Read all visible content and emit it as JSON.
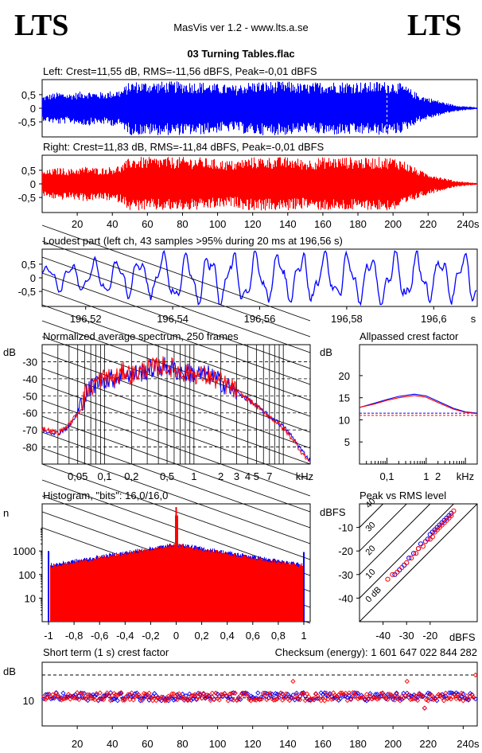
{
  "header": {
    "logo_left": "LTS",
    "logo_right": "LTS",
    "app": "MasVis ver 1.2 - www.lts.a.se",
    "file": "03 Turning Tables.flac"
  },
  "colors": {
    "left": "#0000ff",
    "right": "#ff0000",
    "axis": "#000000"
  },
  "chart_data": [
    {
      "type": "area",
      "name": "left-waveform",
      "title": "Left: Crest=11,55 dB, RMS=-11,56 dBFS, Peak=-0,01 dBFS",
      "yticks": [
        "0,5",
        "0",
        "-0,5"
      ],
      "ylim": [
        -1,
        1
      ],
      "xlim": [
        0,
        248
      ],
      "envelope": [
        [
          0,
          0.45
        ],
        [
          5,
          0.55
        ],
        [
          10,
          0.6
        ],
        [
          15,
          0.55
        ],
        [
          20,
          0.6
        ],
        [
          25,
          0.65
        ],
        [
          30,
          0.6
        ],
        [
          35,
          0.6
        ],
        [
          40,
          0.65
        ],
        [
          45,
          0.7
        ],
        [
          50,
          0.99
        ],
        [
          60,
          0.99
        ],
        [
          70,
          0.99
        ],
        [
          80,
          0.99
        ],
        [
          90,
          0.98
        ],
        [
          100,
          0.9
        ],
        [
          110,
          0.85
        ],
        [
          115,
          0.95
        ],
        [
          120,
          0.99
        ],
        [
          130,
          0.99
        ],
        [
          140,
          0.99
        ],
        [
          145,
          0.95
        ],
        [
          150,
          0.9
        ],
        [
          155,
          0.95
        ],
        [
          160,
          0.99
        ],
        [
          170,
          0.99
        ],
        [
          180,
          0.99
        ],
        [
          185,
          0.95
        ],
        [
          190,
          0.99
        ],
        [
          200,
          0.99
        ],
        [
          205,
          0.9
        ],
        [
          210,
          0.7
        ],
        [
          215,
          0.5
        ],
        [
          220,
          0.4
        ],
        [
          225,
          0.3
        ],
        [
          230,
          0.2
        ],
        [
          235,
          0.12
        ],
        [
          240,
          0.08
        ],
        [
          245,
          0.05
        ],
        [
          248,
          0.03
        ]
      ]
    },
    {
      "type": "area",
      "name": "right-waveform",
      "title": "Right: Crest=11,83 dB, RMS=-11,84 dBFS, Peak=-0,01 dBFS",
      "yticks": [
        "0,5",
        "0",
        "-0,5"
      ],
      "ylim": [
        -1,
        1
      ],
      "xlim": [
        0,
        248
      ],
      "xticks": [
        "20",
        "40",
        "60",
        "80",
        "100",
        "120",
        "140",
        "160",
        "180",
        "200",
        "220",
        "240s"
      ],
      "xtick_values": [
        20,
        40,
        60,
        80,
        100,
        120,
        140,
        160,
        180,
        200,
        220,
        240
      ],
      "envelope": [
        [
          0,
          0.45
        ],
        [
          5,
          0.55
        ],
        [
          10,
          0.6
        ],
        [
          15,
          0.55
        ],
        [
          20,
          0.6
        ],
        [
          25,
          0.65
        ],
        [
          30,
          0.6
        ],
        [
          35,
          0.6
        ],
        [
          40,
          0.65
        ],
        [
          45,
          0.7
        ],
        [
          50,
          0.99
        ],
        [
          60,
          0.99
        ],
        [
          70,
          0.99
        ],
        [
          80,
          0.99
        ],
        [
          90,
          0.98
        ],
        [
          100,
          0.9
        ],
        [
          110,
          0.85
        ],
        [
          115,
          0.95
        ],
        [
          120,
          0.99
        ],
        [
          130,
          0.99
        ],
        [
          140,
          0.99
        ],
        [
          145,
          0.95
        ],
        [
          150,
          0.9
        ],
        [
          155,
          0.95
        ],
        [
          160,
          0.99
        ],
        [
          170,
          0.99
        ],
        [
          180,
          0.99
        ],
        [
          185,
          0.95
        ],
        [
          190,
          0.99
        ],
        [
          200,
          0.99
        ],
        [
          205,
          0.9
        ],
        [
          210,
          0.7
        ],
        [
          215,
          0.5
        ],
        [
          220,
          0.4
        ],
        [
          225,
          0.3
        ],
        [
          230,
          0.2
        ],
        [
          235,
          0.12
        ],
        [
          240,
          0.08
        ],
        [
          245,
          0.05
        ],
        [
          248,
          0.03
        ]
      ]
    },
    {
      "type": "line",
      "name": "loudest-part",
      "title": "Loudest part (left  ch, 43 samples >95% during 20 ms at 196,56 s)",
      "yticks": [
        "0,5",
        "0",
        "-0,5"
      ],
      "ylim": [
        -1,
        1
      ],
      "xlim": [
        196.51,
        196.61
      ],
      "xticks": [
        "196,52",
        "196,54",
        "196,56",
        "196,58",
        "196,6",
        "s"
      ],
      "xtick_values": [
        196.52,
        196.54,
        196.56,
        196.58,
        196.6
      ]
    },
    {
      "type": "line",
      "name": "average-spectrum",
      "title": "Normalized average spectrum, 250 frames",
      "ylabel": "dB",
      "yticks": [
        "-30",
        "-40",
        "-50",
        "-60",
        "-70",
        "-80"
      ],
      "ytick_values": [
        -30,
        -40,
        -50,
        -60,
        -70,
        -80
      ],
      "ylim": [
        -90,
        -20
      ],
      "xscale": "log",
      "xlim": [
        0.02,
        20
      ],
      "xticks": [
        "0,05",
        "0,1",
        "0,2",
        "0,5",
        "1",
        "2",
        "3",
        "4",
        "5",
        "7",
        "kHz"
      ],
      "xtick_values": [
        0.05,
        0.1,
        0.2,
        0.5,
        1,
        2,
        3,
        4,
        5,
        7
      ],
      "series": [
        {
          "color": "#0000ff",
          "x": [
            0.02,
            0.03,
            0.04,
            0.05,
            0.06,
            0.08,
            0.1,
            0.13,
            0.17,
            0.2,
            0.3,
            0.4,
            0.5,
            0.7,
            1,
            1.5,
            2,
            3,
            4,
            5,
            7,
            10,
            13,
            16,
            20
          ],
          "y": [
            -70,
            -72,
            -68,
            -60,
            -50,
            -42,
            -40,
            -40,
            -36,
            -38,
            -35,
            -33,
            -33,
            -36,
            -37,
            -38,
            -42,
            -48,
            -52,
            -56,
            -62,
            -68,
            -75,
            -82,
            -88
          ]
        },
        {
          "color": "#ff0000",
          "x": [
            0.02,
            0.03,
            0.04,
            0.05,
            0.06,
            0.08,
            0.1,
            0.13,
            0.17,
            0.2,
            0.3,
            0.4,
            0.5,
            0.7,
            1,
            1.5,
            2,
            3,
            4,
            5,
            7,
            10,
            13,
            16,
            20
          ],
          "y": [
            -69,
            -72,
            -67,
            -60,
            -49,
            -42,
            -39,
            -40,
            -35,
            -38,
            -34,
            -33,
            -32,
            -36,
            -37,
            -39,
            -42,
            -47,
            -52,
            -56,
            -62,
            -69,
            -76,
            -83,
            -89
          ]
        }
      ]
    },
    {
      "type": "line",
      "name": "allpassed-crest-factor",
      "title": "Allpassed crest factor",
      "ylabel": "dB",
      "yticks": [
        "20",
        "15",
        "10",
        "5"
      ],
      "ytick_values": [
        20,
        15,
        10,
        5
      ],
      "ylim": [
        0,
        27
      ],
      "xscale": "log",
      "xlim": [
        0.02,
        20
      ],
      "xticks": [
        "0,1",
        "1",
        "2",
        "kHz"
      ],
      "xtick_values": [
        0.1,
        1,
        2
      ],
      "series": [
        {
          "color": "#0000ff",
          "x": [
            0.02,
            0.05,
            0.1,
            0.2,
            0.5,
            1,
            2,
            5,
            10,
            20
          ],
          "y": [
            12.8,
            13.8,
            14.6,
            15.3,
            15.8,
            15.4,
            14.2,
            12.6,
            11.8,
            11.5
          ]
        },
        {
          "color": "#ff0000",
          "x": [
            0.02,
            0.05,
            0.1,
            0.2,
            0.5,
            1,
            2,
            5,
            10,
            20
          ],
          "y": [
            12.8,
            13.6,
            14.4,
            15.0,
            15.5,
            15.1,
            13.9,
            12.4,
            11.7,
            11.4
          ]
        }
      ],
      "reference_lines": [
        11.5,
        11.0
      ]
    },
    {
      "type": "bar",
      "name": "histogram",
      "title": "Histogram, \"bits\": 16,0/16,0",
      "ylabel": "n",
      "yscale": "log",
      "yticks": [
        "1000",
        "100",
        "10"
      ],
      "ytick_values": [
        1000,
        100,
        10
      ],
      "ylim": [
        1,
        100000
      ],
      "xlim": [
        -1.05,
        1.05
      ],
      "xticks": [
        "-1",
        "-0,8",
        "-0,6",
        "-0,4",
        "-0,2",
        "0",
        "0,2",
        "0,4",
        "0,6",
        "0,8",
        "1"
      ],
      "xtick_values": [
        -1,
        -0.8,
        -0.6,
        -0.4,
        -0.2,
        0,
        0.2,
        0.4,
        0.6,
        0.8,
        1
      ]
    },
    {
      "type": "scatter",
      "name": "peak-vs-rms",
      "title": "Peak vs RMS level",
      "ylabel": "dBFS",
      "xlabel": "dBFS",
      "yticks": [
        "-10",
        "-20",
        "-30",
        "-40"
      ],
      "ytick_values": [
        -10,
        -20,
        -30,
        -40
      ],
      "ylim": [
        -50,
        0
      ],
      "xticks": [
        "-40",
        "-30",
        "-20"
      ],
      "xtick_values": [
        -40,
        -30,
        -20
      ],
      "xlim": [
        -50,
        0
      ],
      "diagonal_labels": [
        "40",
        "30",
        "20",
        "10",
        "0 dB"
      ],
      "series": [
        {
          "color": "#0000ff",
          "x": [
            -35,
            -33,
            -31,
            -29,
            -27,
            -25,
            -24,
            -22,
            -21,
            -20,
            -19,
            -18,
            -17,
            -16,
            -15,
            -14,
            -13,
            -12,
            -11
          ],
          "y": [
            -30,
            -28,
            -26,
            -23,
            -21,
            -19,
            -17,
            -16,
            -15,
            -13,
            -12,
            -11,
            -10,
            -9,
            -8,
            -7,
            -6,
            -5,
            -4
          ]
        },
        {
          "color": "#ff0000",
          "x": [
            -38,
            -36,
            -34,
            -32,
            -30,
            -28,
            -26,
            -25,
            -23,
            -22,
            -20,
            -19,
            -18,
            -17,
            -16,
            -15,
            -14,
            -13,
            -12,
            -11,
            -10
          ],
          "y": [
            -32,
            -30,
            -29,
            -27,
            -25,
            -23,
            -21,
            -19,
            -18,
            -16,
            -15,
            -14,
            -12,
            -11,
            -10,
            -9,
            -8,
            -7,
            -6,
            -5,
            -3
          ]
        }
      ]
    },
    {
      "type": "scatter",
      "name": "short-term-crest",
      "title": "Short term (1 s) crest factor",
      "checksum": "Checksum (energy):  1 601 647 022 844 282",
      "ylabel": "dB",
      "yticks": [
        "10"
      ],
      "ytick_values": [
        10
      ],
      "ylim": [
        0,
        25
      ],
      "xlim": [
        0,
        248
      ],
      "xticks": [
        "20",
        "40",
        "60",
        "80",
        "100",
        "120",
        "140",
        "160",
        "180",
        "200",
        "220",
        "240s"
      ],
      "xtick_values": [
        20,
        40,
        60,
        80,
        100,
        120,
        140,
        160,
        180,
        200,
        220,
        240
      ],
      "reference_lines": [
        20,
        11
      ]
    }
  ]
}
